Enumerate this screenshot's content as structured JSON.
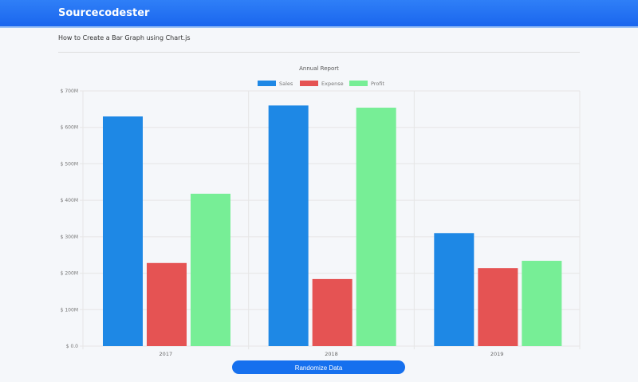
{
  "header": {
    "brand": "Sourcecodester"
  },
  "page": {
    "subtitle": "How to Create a Bar Graph using Chart.js",
    "button_label": "Randomize Data"
  },
  "chart_data": {
    "type": "bar",
    "title": "Annual Report",
    "categories": [
      "2017",
      "2018",
      "2019"
    ],
    "series": [
      {
        "name": "Sales",
        "color": "#1e88e5",
        "values": [
          630,
          660,
          310
        ]
      },
      {
        "name": "Expense",
        "color": "#e55353",
        "values": [
          228,
          184,
          214
        ]
      },
      {
        "name": "Profit",
        "color": "#77ee96",
        "values": [
          418,
          654,
          234
        ]
      }
    ],
    "ylim": [
      0,
      700
    ],
    "yticks": [
      "$ 0.0",
      "$ 100M",
      "$ 200M",
      "$ 300M",
      "$ 400M",
      "$ 500M",
      "$ 600M",
      "$ 700M"
    ],
    "grid": true,
    "legend": "top"
  }
}
